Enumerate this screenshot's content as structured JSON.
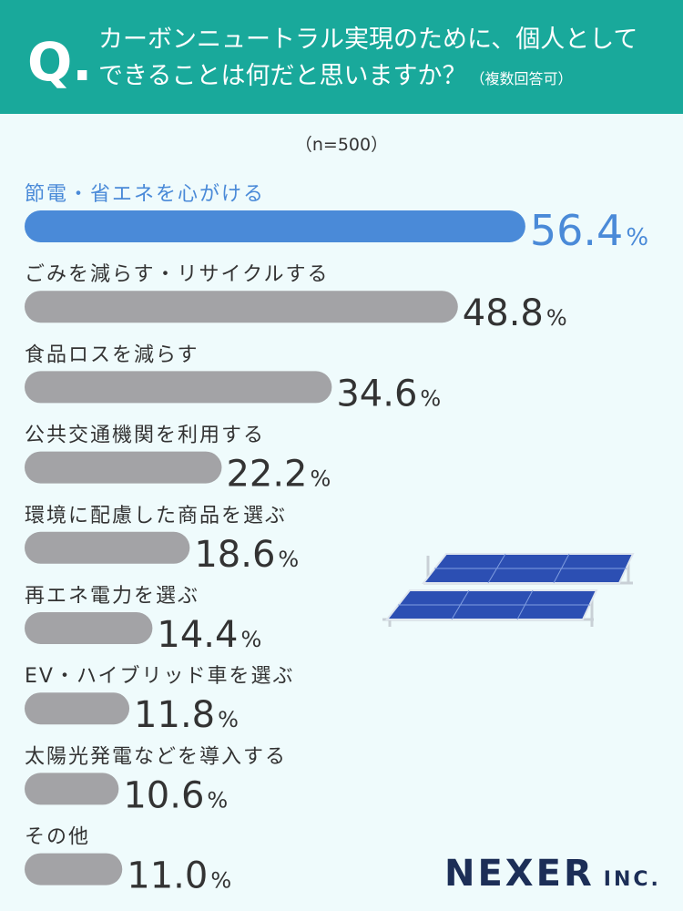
{
  "header": {
    "question_label": "Q.",
    "title_lines": [
      "カーボンニュートラル実現のために、個人として",
      "できることは何だと思いますか？"
    ],
    "note": "（複数回答可）"
  },
  "chart_data": {
    "type": "bar",
    "orientation": "horizontal",
    "sample": "（n=500）",
    "categories": [
      "節電・省エネを心がける",
      "ごみを減らす・リサイクルする",
      "食品ロスを減らす",
      "公共交通機関を利用する",
      "環境に配慮した商品を選ぶ",
      "再エネ電力を選ぶ",
      "EV・ハイブリッド車を選ぶ",
      "太陽光発電などを導入する",
      "その他"
    ],
    "values": [
      56.4,
      48.8,
      34.6,
      22.2,
      18.6,
      14.4,
      11.8,
      10.6,
      11.0
    ],
    "value_labels": [
      "56.4%",
      "48.8%",
      "34.6%",
      "22.2%",
      "18.6%",
      "14.4%",
      "11.8%",
      "10.6%",
      "11.0%"
    ],
    "colors": [
      "#4a8ad8",
      "#a3a3a6",
      "#a3a3a6",
      "#a3a3a6",
      "#a3a3a6",
      "#a3a3a6",
      "#a3a3a6",
      "#a3a3a6",
      "#a3a3a6"
    ]
  },
  "brand": {
    "name": "NEXER",
    "suffix": "INC."
  }
}
